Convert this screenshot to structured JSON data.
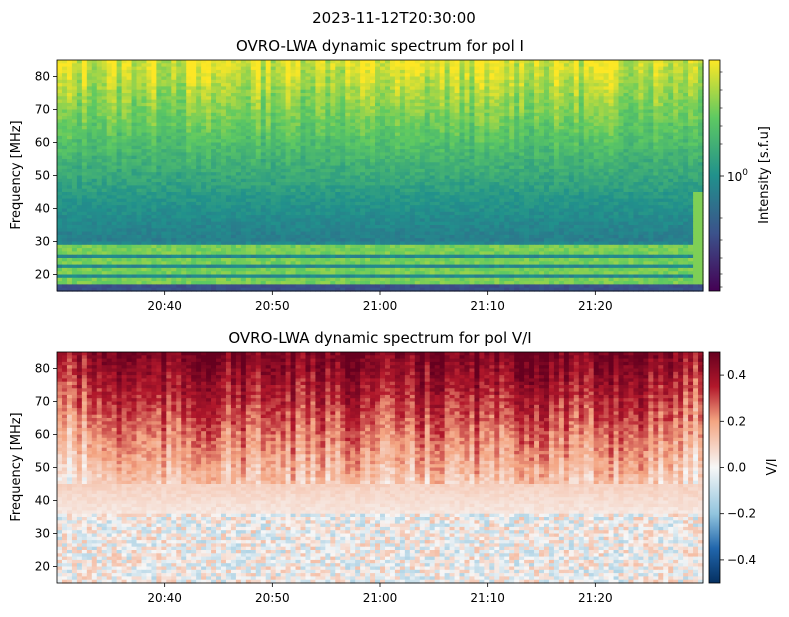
{
  "figure": {
    "suptitle": "2023-11-12T20:30:00"
  },
  "chart_data": [
    {
      "type": "heatmap",
      "title": "OVRO-LWA dynamic spectrum for pol I",
      "xlabel": "",
      "ylabel": "Frequency [MHz]",
      "x_ticks": [
        "20:40",
        "20:50",
        "21:00",
        "21:10",
        "21:20"
      ],
      "y_ticks": [
        20,
        30,
        40,
        50,
        60,
        70,
        80
      ],
      "x_range": [
        "20:30",
        "21:30"
      ],
      "ylim": [
        15,
        85
      ],
      "colormap": "viridis",
      "colorbar": {
        "label": "Intensity [s.f.u]",
        "scale": "log",
        "tick_labels": [
          "10^0"
        ]
      },
      "bright_bands_mhz": [
        18,
        21,
        24,
        27,
        28.5
      ],
      "dark_band_mhz": [
        15,
        17.5
      ],
      "colors": {
        "low": "#440154",
        "mid": "#21918c",
        "high": "#fde725"
      }
    },
    {
      "type": "heatmap",
      "title": "OVRO-LWA dynamic spectrum for pol V/I",
      "xlabel": "",
      "ylabel": "Frequency [MHz]",
      "x_ticks": [
        "20:40",
        "20:50",
        "21:00",
        "21:10",
        "21:20"
      ],
      "y_ticks": [
        20,
        30,
        40,
        50,
        60,
        70,
        80
      ],
      "x_range": [
        "20:30",
        "21:30"
      ],
      "ylim": [
        15,
        85
      ],
      "colormap": "RdBu_r",
      "colorbar": {
        "label": "V/I",
        "scale": "linear",
        "range": [
          -0.5,
          0.5
        ],
        "tick_labels": [
          "0.4",
          "0.2",
          "0.0",
          "−0.2",
          "−0.4"
        ]
      },
      "colors": {
        "low": "#053061",
        "mid": "#f7f7f7",
        "high": "#67001f"
      }
    }
  ]
}
